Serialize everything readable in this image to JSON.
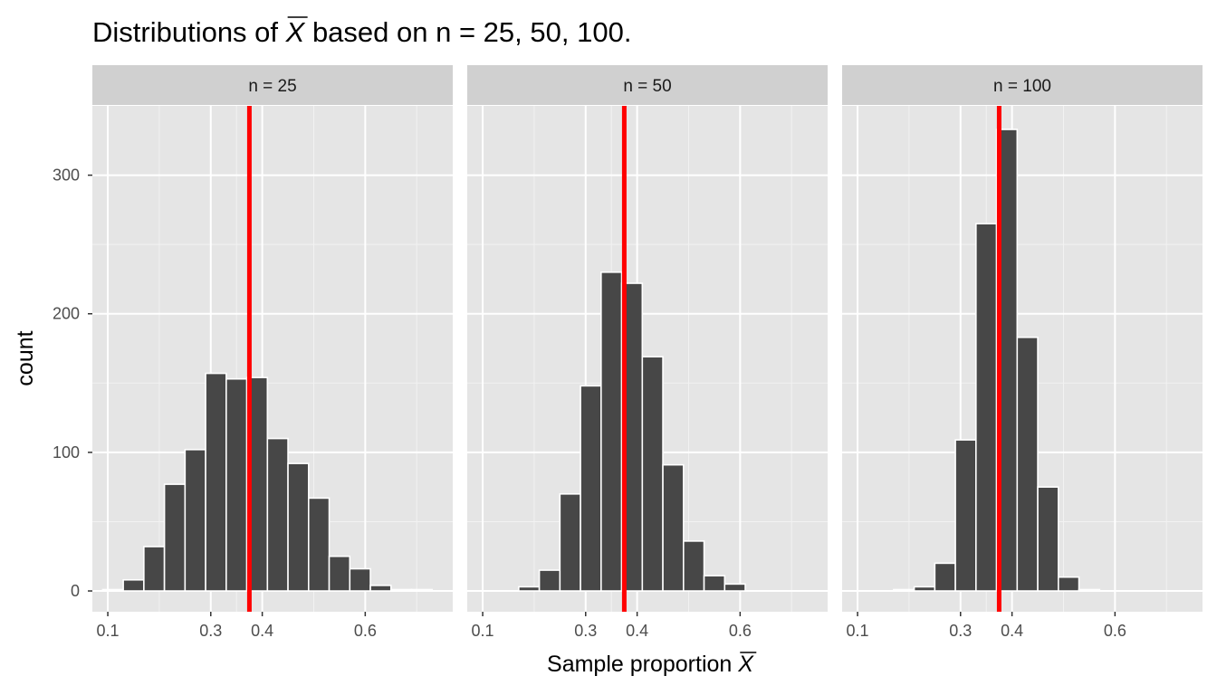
{
  "chart_data": {
    "type": "bar",
    "title_text": "Distributions of ",
    "title_symbol": "X",
    "title_rest": " based on n = 25, 50, 100.",
    "xlabel_text": "Sample proportion ",
    "xlabel_symbol": "X",
    "ylabel": "count",
    "xlim": [
      0.07,
      0.77
    ],
    "ylim": [
      -15,
      350
    ],
    "xticks": [
      0.1,
      0.3,
      0.4,
      0.6
    ],
    "yticks": [
      0,
      100,
      200,
      300
    ],
    "grid": true,
    "vline": 0.375,
    "vline_color": "#ff0000",
    "bar_fill": "#474747",
    "bar_outline": "#ffffff",
    "panel_bg": "#e5e5e5",
    "strip_bg": "#d0d0d0",
    "panels": [
      {
        "label": "n = 25",
        "bins": [
          {
            "x0": 0.09,
            "x1": 0.13,
            "count": 1
          },
          {
            "x0": 0.13,
            "x1": 0.17,
            "count": 8
          },
          {
            "x0": 0.17,
            "x1": 0.21,
            "count": 32
          },
          {
            "x0": 0.21,
            "x1": 0.25,
            "count": 77
          },
          {
            "x0": 0.25,
            "x1": 0.29,
            "count": 102
          },
          {
            "x0": 0.29,
            "x1": 0.33,
            "count": 157
          },
          {
            "x0": 0.33,
            "x1": 0.37,
            "count": 153
          },
          {
            "x0": 0.37,
            "x1": 0.41,
            "count": 154
          },
          {
            "x0": 0.41,
            "x1": 0.45,
            "count": 110
          },
          {
            "x0": 0.45,
            "x1": 0.49,
            "count": 92
          },
          {
            "x0": 0.49,
            "x1": 0.53,
            "count": 67
          },
          {
            "x0": 0.53,
            "x1": 0.57,
            "count": 25
          },
          {
            "x0": 0.57,
            "x1": 0.61,
            "count": 16
          },
          {
            "x0": 0.61,
            "x1": 0.65,
            "count": 4
          },
          {
            "x0": 0.65,
            "x1": 0.69,
            "count": 1
          },
          {
            "x0": 0.69,
            "x1": 0.73,
            "count": 1
          }
        ]
      },
      {
        "label": "n = 50",
        "bins": [
          {
            "x0": 0.09,
            "x1": 0.13,
            "count": 0
          },
          {
            "x0": 0.13,
            "x1": 0.17,
            "count": 0
          },
          {
            "x0": 0.17,
            "x1": 0.21,
            "count": 3
          },
          {
            "x0": 0.21,
            "x1": 0.25,
            "count": 15
          },
          {
            "x0": 0.25,
            "x1": 0.29,
            "count": 70
          },
          {
            "x0": 0.29,
            "x1": 0.33,
            "count": 148
          },
          {
            "x0": 0.33,
            "x1": 0.37,
            "count": 230
          },
          {
            "x0": 0.37,
            "x1": 0.41,
            "count": 222
          },
          {
            "x0": 0.41,
            "x1": 0.45,
            "count": 169
          },
          {
            "x0": 0.45,
            "x1": 0.49,
            "count": 91
          },
          {
            "x0": 0.49,
            "x1": 0.53,
            "count": 36
          },
          {
            "x0": 0.53,
            "x1": 0.57,
            "count": 11
          },
          {
            "x0": 0.57,
            "x1": 0.61,
            "count": 5
          },
          {
            "x0": 0.61,
            "x1": 0.65,
            "count": 0
          }
        ]
      },
      {
        "label": "n = 100",
        "bins": [
          {
            "x0": 0.17,
            "x1": 0.21,
            "count": 1
          },
          {
            "x0": 0.21,
            "x1": 0.25,
            "count": 3
          },
          {
            "x0": 0.25,
            "x1": 0.29,
            "count": 20
          },
          {
            "x0": 0.29,
            "x1": 0.33,
            "count": 109
          },
          {
            "x0": 0.33,
            "x1": 0.37,
            "count": 265
          },
          {
            "x0": 0.37,
            "x1": 0.41,
            "count": 333
          },
          {
            "x0": 0.41,
            "x1": 0.45,
            "count": 183
          },
          {
            "x0": 0.45,
            "x1": 0.49,
            "count": 75
          },
          {
            "x0": 0.49,
            "x1": 0.53,
            "count": 10
          },
          {
            "x0": 0.53,
            "x1": 0.57,
            "count": 1
          }
        ]
      }
    ]
  }
}
